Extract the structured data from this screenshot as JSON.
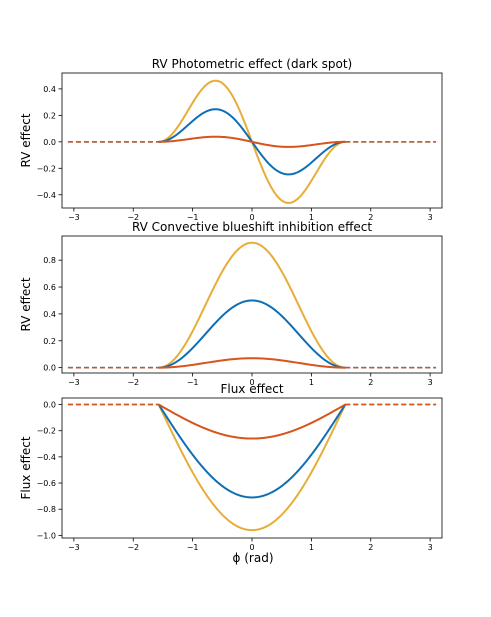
{
  "figure": {
    "xlabel": "ϕ (rad)"
  },
  "colors": {
    "gold": "#e8ad38",
    "blue": "#0f6fb5",
    "red": "#d7541d"
  },
  "chart_data": [
    {
      "type": "line",
      "title": "RV Photometric effect (dark spot)",
      "ylabel": "RV effect",
      "xlim": [
        -3.2,
        3.2
      ],
      "ylim": [
        -0.5,
        0.52
      ],
      "xticks": [
        -3,
        -2,
        -1,
        0,
        1,
        2,
        3
      ],
      "yticks": [
        0.4,
        0.2,
        0.0,
        -0.2,
        -0.4
      ],
      "ytick_labels": [
        "0.4",
        "0.2",
        "0.0",
        "−0.2",
        "−0.4"
      ],
      "baseline": 0,
      "visible_range": [
        -1.5708,
        1.5708
      ],
      "series": [
        {
          "color": "gold",
          "shape": "sin(2x)*cos(x)",
          "amplitude": 0.6,
          "x_peak": -0.76,
          "y_peak": 0.47,
          "x_trough": 0.76,
          "y_trough": -0.47
        },
        {
          "color": "blue",
          "shape": "sin(2x)*cos(x)",
          "amplitude": 0.32,
          "x_peak": -0.76,
          "y_peak": 0.25,
          "x_trough": 0.76,
          "y_trough": -0.25
        },
        {
          "color": "red",
          "shape": "sin(2x)*cos(x)",
          "amplitude": 0.05,
          "x_peak": -0.76,
          "y_peak": 0.03,
          "x_trough": 0.76,
          "y_trough": -0.03
        }
      ]
    },
    {
      "type": "line",
      "title": "RV Convective blueshift inhibition effect",
      "ylabel": "RV effect",
      "xlim": [
        -3.2,
        3.2
      ],
      "ylim": [
        -0.04,
        0.98
      ],
      "xticks": [
        -3,
        -2,
        -1,
        0,
        1,
        2,
        3
      ],
      "yticks": [
        0.8,
        0.6,
        0.4,
        0.2,
        0.0
      ],
      "ytick_labels": [
        "0.8",
        "0.6",
        "0.4",
        "0.2",
        "0.0"
      ],
      "baseline": 0,
      "visible_range": [
        -1.5708,
        1.5708
      ],
      "series": [
        {
          "color": "gold",
          "shape": "cos(x)^2",
          "amplitude": 0.93,
          "x_peak": 0,
          "y_peak": 0.93
        },
        {
          "color": "blue",
          "shape": "cos(x)^2",
          "amplitude": 0.5,
          "x_peak": 0,
          "y_peak": 0.5
        },
        {
          "color": "red",
          "shape": "cos(x)^2",
          "amplitude": 0.07,
          "x_peak": 0,
          "y_peak": 0.07
        }
      ]
    },
    {
      "type": "line",
      "title": "Flux effect",
      "ylabel": "Flux effect",
      "xlabel": "ϕ (rad)",
      "xlim": [
        -3.2,
        3.2
      ],
      "ylim": [
        -1.02,
        0.05
      ],
      "xticks": [
        -3,
        -2,
        -1,
        0,
        1,
        2,
        3
      ],
      "yticks": [
        0.0,
        -0.2,
        -0.4,
        -0.6,
        -0.8,
        -1.0
      ],
      "ytick_labels": [
        "0.0",
        "−0.2",
        "−0.4",
        "−0.6",
        "−0.8",
        "−1.0"
      ],
      "baseline": 0,
      "visible_range": [
        -1.5708,
        1.5708
      ],
      "series": [
        {
          "color": "gold",
          "shape": "-cos(x)",
          "amplitude": 0.96,
          "x_peak": 0,
          "y_peak": -0.96
        },
        {
          "color": "blue",
          "shape": "-cos(x)",
          "amplitude": 0.71,
          "x_peak": 0,
          "y_peak": -0.71
        },
        {
          "color": "red",
          "shape": "-cos(x)",
          "amplitude": 0.26,
          "x_peak": 0,
          "y_peak": -0.26
        }
      ]
    }
  ]
}
